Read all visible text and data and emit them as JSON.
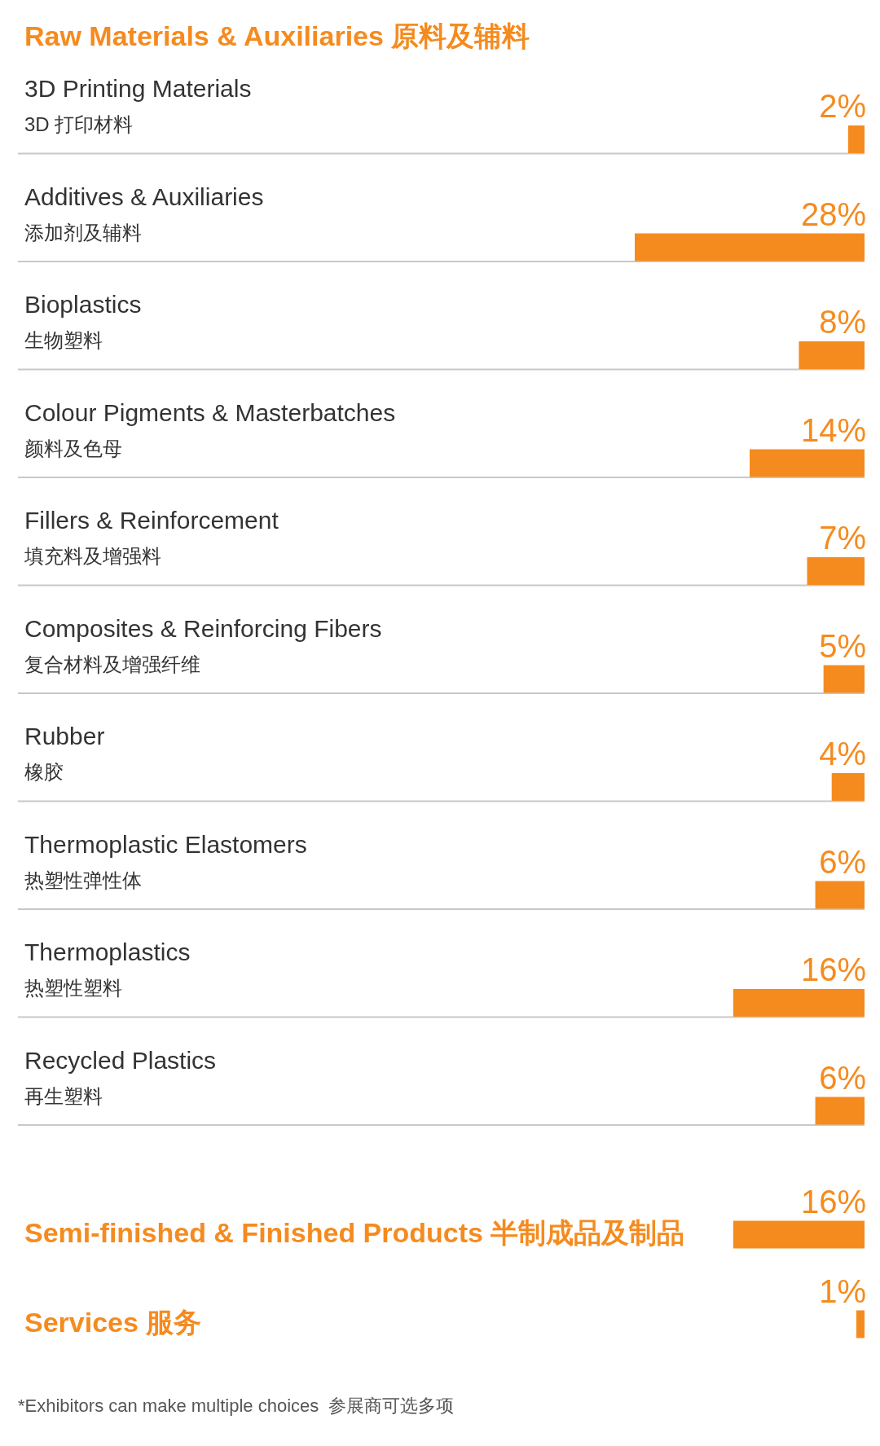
{
  "chart_data": {
    "type": "bar",
    "orientation": "horizontal",
    "title": "Raw Materials & Auxiliaries 原料及辅料",
    "categories": [
      "3D Printing Materials\n3D 打印材料",
      "Additives & Auxiliaries\n添加剂及辅料",
      "Bioplastics\n生物塑料",
      "Colour Pigments & Masterbatches\n颜料及色母",
      "Fillers & Reinforcement\n填充料及增强料",
      "Composites & Reinforcing Fibers\n复合材料及增强纤维",
      "Rubber\n橡胶",
      "Thermoplastic Elastomers\n热塑性弹性体",
      "Thermoplastics\n热塑性塑料",
      "Recycled Plastics\n再生塑料",
      "Semi-finished & Finished Products 半制成品及制品",
      "Services 服务"
    ],
    "values": [
      2,
      28,
      8,
      14,
      7,
      5,
      4,
      6,
      16,
      6,
      16,
      1
    ],
    "value_labels": [
      "2%",
      "28%",
      "8%",
      "14%",
      "7%",
      "5%",
      "4%",
      "6%",
      "16%",
      "6%",
      "16%",
      "1%"
    ],
    "color": "#f58b1f",
    "annotations": [
      "*Exhibitors can make multiple choices  参展商可选多项"
    ]
  }
}
